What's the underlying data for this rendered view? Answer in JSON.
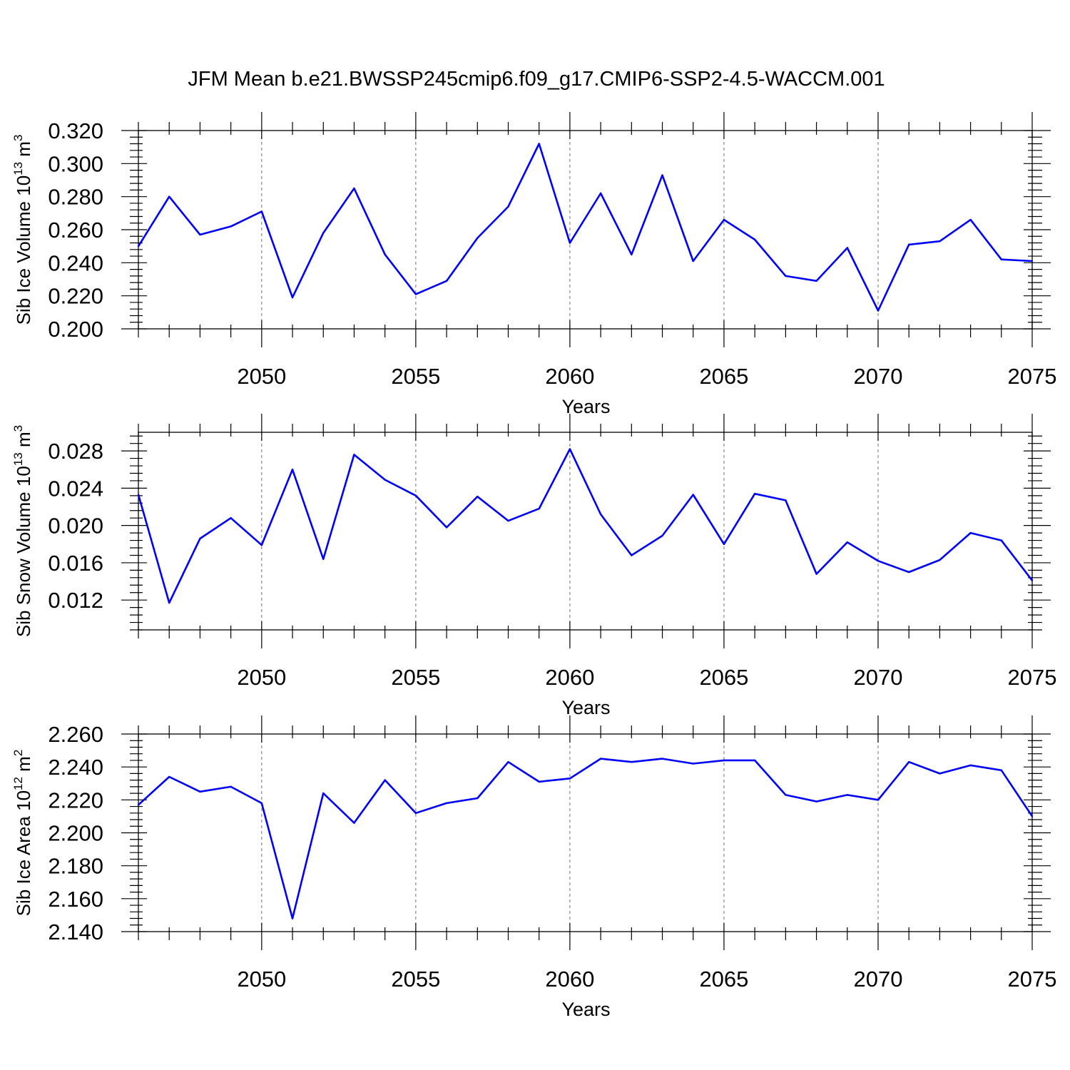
{
  "title": "JFM Mean b.e21.BWSSP245cmip6.f09_g17.CMIP6-SSP2-4.5-WACCM.001",
  "chart_data": [
    {
      "type": "line",
      "ylabel_main": "Sib Ice Volume 10",
      "ylabel_exp": "13",
      "ylabel_unit": " m",
      "ylabel_unit_exp": "3",
      "xlabel": "Years",
      "xlim": [
        2046,
        2075
      ],
      "ylim": [
        0.2,
        0.32
      ],
      "yticks": [
        0.2,
        0.22,
        0.24,
        0.26,
        0.28,
        0.3,
        0.32
      ],
      "ytick_labels": [
        "0.200",
        "0.220",
        "0.240",
        "0.260",
        "0.280",
        "0.300",
        "0.320"
      ],
      "yminor_step": 0.004,
      "xticks": [
        2050,
        2055,
        2060,
        2065,
        2070,
        2075
      ],
      "xtick_labels": [
        "2050",
        "2055",
        "2060",
        "2065",
        "2070",
        "2075"
      ],
      "grid_x": true,
      "color": "#0000ff",
      "x": [
        2046,
        2047,
        2048,
        2049,
        2050,
        2051,
        2052,
        2053,
        2054,
        2055,
        2056,
        2057,
        2058,
        2059,
        2060,
        2061,
        2062,
        2063,
        2064,
        2065,
        2066,
        2067,
        2068,
        2069,
        2070,
        2071,
        2072,
        2073,
        2074,
        2075
      ],
      "values": [
        0.25,
        0.28,
        0.257,
        0.262,
        0.271,
        0.219,
        0.258,
        0.285,
        0.245,
        0.221,
        0.229,
        0.255,
        0.274,
        0.312,
        0.252,
        0.282,
        0.245,
        0.293,
        0.241,
        0.266,
        0.254,
        0.232,
        0.229,
        0.249,
        0.211,
        0.251,
        0.253,
        0.266,
        0.242,
        0.241
      ]
    },
    {
      "type": "line",
      "ylabel_main": "Sib Snow Volume 10",
      "ylabel_exp": "13",
      "ylabel_unit": " m",
      "ylabel_unit_exp": "3",
      "xlabel": "Years",
      "xlim": [
        2046,
        2075
      ],
      "ylim": [
        0.0088,
        0.03
      ],
      "yticks": [
        0.012,
        0.016,
        0.02,
        0.024,
        0.028
      ],
      "ytick_labels": [
        "0.012",
        "0.016",
        "0.020",
        "0.024",
        "0.028"
      ],
      "yminor_step": 0.0008,
      "xticks": [
        2050,
        2055,
        2060,
        2065,
        2070,
        2075
      ],
      "xtick_labels": [
        "2050",
        "2055",
        "2060",
        "2065",
        "2070",
        "2075"
      ],
      "grid_x": true,
      "color": "#0000ff",
      "x": [
        2046,
        2047,
        2048,
        2049,
        2050,
        2051,
        2052,
        2053,
        2054,
        2055,
        2056,
        2057,
        2058,
        2059,
        2060,
        2061,
        2062,
        2063,
        2064,
        2065,
        2066,
        2067,
        2068,
        2069,
        2070,
        2071,
        2072,
        2073,
        2074,
        2075
      ],
      "values": [
        0.0233,
        0.0117,
        0.0186,
        0.0208,
        0.0179,
        0.026,
        0.0164,
        0.0276,
        0.0249,
        0.0232,
        0.0198,
        0.0231,
        0.0205,
        0.0218,
        0.0282,
        0.0212,
        0.0168,
        0.0189,
        0.0233,
        0.018,
        0.0234,
        0.0227,
        0.0148,
        0.0182,
        0.0162,
        0.015,
        0.0163,
        0.0192,
        0.0184,
        0.0141
      ]
    },
    {
      "type": "line",
      "ylabel_main": "Sib Ice Area 10",
      "ylabel_exp": "12",
      "ylabel_unit": " m",
      "ylabel_unit_exp": "2",
      "xlabel": "Years",
      "xlim": [
        2046,
        2075
      ],
      "ylim": [
        2.14,
        2.26
      ],
      "yticks": [
        2.14,
        2.16,
        2.18,
        2.2,
        2.22,
        2.24,
        2.26
      ],
      "ytick_labels": [
        "2.140",
        "2.160",
        "2.180",
        "2.200",
        "2.220",
        "2.240",
        "2.260"
      ],
      "yminor_step": 0.004,
      "xticks": [
        2050,
        2055,
        2060,
        2065,
        2070,
        2075
      ],
      "xtick_labels": [
        "2050",
        "2055",
        "2060",
        "2065",
        "2070",
        "2075"
      ],
      "grid_x": true,
      "color": "#0000ff",
      "x": [
        2046,
        2047,
        2048,
        2049,
        2050,
        2051,
        2052,
        2053,
        2054,
        2055,
        2056,
        2057,
        2058,
        2059,
        2060,
        2061,
        2062,
        2063,
        2064,
        2065,
        2066,
        2067,
        2068,
        2069,
        2070,
        2071,
        2072,
        2073,
        2074,
        2075
      ],
      "values": [
        2.217,
        2.234,
        2.225,
        2.228,
        2.218,
        2.148,
        2.224,
        2.206,
        2.232,
        2.212,
        2.218,
        2.221,
        2.243,
        2.231,
        2.233,
        2.245,
        2.243,
        2.245,
        2.242,
        2.244,
        2.244,
        2.223,
        2.219,
        2.223,
        2.22,
        2.243,
        2.236,
        2.241,
        2.238,
        2.21
      ]
    }
  ]
}
